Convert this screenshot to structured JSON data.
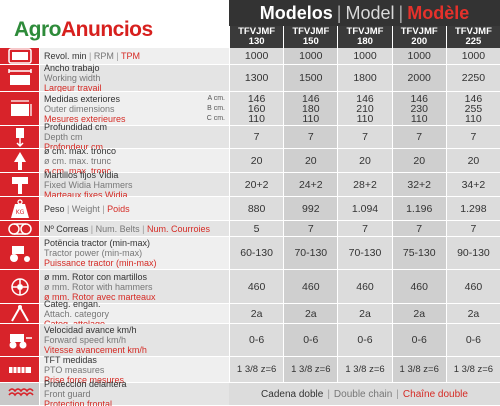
{
  "logo": {
    "part1": "Agro",
    "part2": "Anuncios"
  },
  "title": {
    "es": "Modelos",
    "en": "Model",
    "fr": "Modèle",
    "sep": "|"
  },
  "models": [
    "TFVJMF\n130",
    "TFVJMF\n150",
    "TFVJMF\n180",
    "TFVJMF\n200",
    "TFVJMF\n225"
  ],
  "rows": [
    {
      "icon": "rpm-icon",
      "l1": "Revol. min",
      "l2": "RPM",
      "l3": "TPM",
      "inline": true,
      "values": [
        "1000",
        "1000",
        "1000",
        "1000",
        "1000"
      ]
    },
    {
      "icon": "working-width-icon",
      "l1": "Ancho trabajo",
      "l2": "Working width",
      "l3": "Largeur travail",
      "values": [
        "1300",
        "1500",
        "1800",
        "2000",
        "2250"
      ]
    },
    {
      "icon": "outer-dimensions-icon",
      "l1": "Medidas exteriores",
      "l2": "Outer dimensions",
      "l3": "Mesures exterieures",
      "dims": [
        "A cm.",
        "B cm.",
        "C cm."
      ],
      "values": [
        "146\n160\n110",
        "146\n180\n110",
        "146\n210\n110",
        "146\n230\n110",
        "146\n255\n110"
      ]
    },
    {
      "icon": "depth-icon",
      "l1": "Profundidad cm",
      "l2": "Depth cm",
      "l3": "Profondeur cm",
      "values": [
        "7",
        "7",
        "7",
        "7",
        "7"
      ]
    },
    {
      "icon": "trunk-icon",
      "l1": "ø cm. max. tronco",
      "l2": "ø cm. max. trunc",
      "l3": "ø cm. max. tronc",
      "values": [
        "20",
        "20",
        "20",
        "20",
        "20"
      ]
    },
    {
      "icon": "hammer-icon",
      "l1": "Martillos fijos Vidia",
      "l2": "Fixed Widia Hammers",
      "l3": "Marteaux fixes Widia",
      "values": [
        "20+2",
        "24+2",
        "28+2",
        "32+2",
        "34+2"
      ]
    },
    {
      "icon": "weight-icon",
      "l1": "Peso",
      "l2": "Weight",
      "l3": "Poids",
      "inline": true,
      "values": [
        "880",
        "992",
        "1.094",
        "1.196",
        "1.298"
      ]
    },
    {
      "icon": "belts-icon",
      "l1": "Nº Correas",
      "l2": "Num. Belts",
      "l3": "Num. Courroies",
      "inline": true,
      "values": [
        "5",
        "7",
        "7",
        "7",
        "7"
      ]
    },
    {
      "icon": "tractor-power-icon",
      "l1": "Potëncia tractor (min-max)",
      "l2": "Tractor power (min-max)",
      "l3": "Puissance tractor (min-max)",
      "values": [
        "60-130",
        "70-130",
        "70-130",
        "75-130",
        "90-130"
      ]
    },
    {
      "icon": "rotor-hammers-icon",
      "l1": "ø mm. Rotor con martillos",
      "l2": "ø mm. Rotor with hammers",
      "l3": "ø mm. Rotor avec marteaux",
      "values": [
        "460",
        "460",
        "460",
        "460",
        "460"
      ]
    },
    {
      "icon": "hitch-icon",
      "l1": "Categ. engan.",
      "l2": "Attach. category",
      "l3": "Categ. attelage",
      "values": [
        "2a",
        "2a",
        "2a",
        "2a",
        "2a"
      ]
    },
    {
      "icon": "forward-speed-icon",
      "l1": "Velocidad avance km/h",
      "l2": "Forward speed km/h",
      "l3": "Vitesse avancement km/h",
      "values": [
        "0-6",
        "0-6",
        "0-6",
        "0-6",
        "0-6"
      ]
    },
    {
      "icon": "pto-icon",
      "l1": "TFT medidas",
      "l2": "PTO measures",
      "l3": "Prise force mesures",
      "values": [
        "1 3/8 z=6",
        "1 3/8 z=6",
        "1 3/8 z=6",
        "1 3/8 z=6",
        "1 3/8 z=6"
      ]
    },
    {
      "icon": "front-guard-icon",
      "l1": "Protección delantera",
      "l2": "Front guard",
      "l3": "Protection frontal",
      "merged": {
        "es": "Cadena doble",
        "en": "Double chain",
        "fr": "Chaîne double"
      }
    }
  ],
  "colors": {
    "accent": "#d8232a",
    "header_dark": "#333333",
    "cell": "#dcdcdc",
    "logo_green": "#2e8b3a"
  }
}
